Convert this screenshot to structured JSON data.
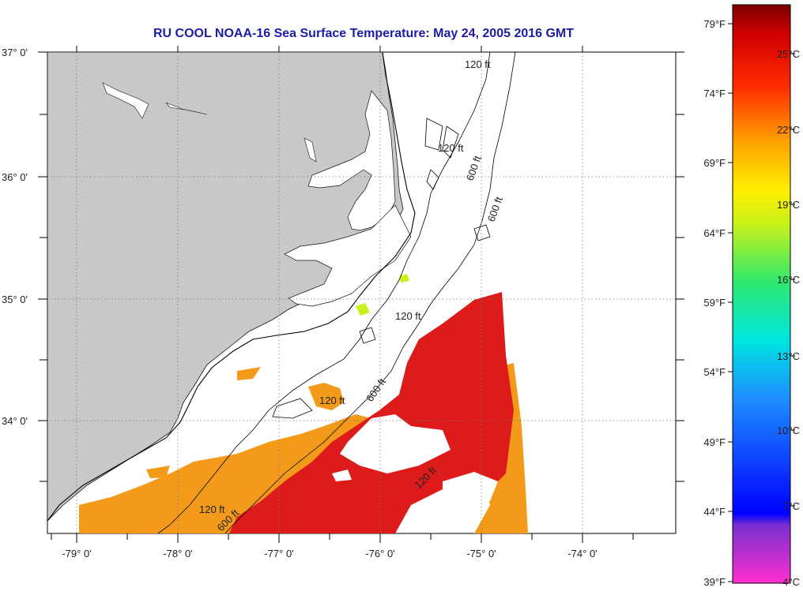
{
  "title": "RU COOL  NOAA-16  Sea Surface Temperature:  May 24, 2005 2016 GMT",
  "map": {
    "lat_labels": [
      "37° 0'",
      "36° 0'",
      "35° 0'",
      "34° 0'"
    ],
    "lon_labels": [
      "-79° 0'",
      "-78° 0'",
      "-77° 0'",
      "-76° 0'",
      "-75° 0'",
      "-74° 0'"
    ],
    "contours": [
      "120 ft",
      "120 ft",
      "120 ft",
      "120 ft",
      "120 ft",
      "600 ft",
      "600 ft",
      "600 ft",
      "120 ft",
      "600 ft"
    ],
    "colors": {
      "land": "#c8c8c8",
      "water_cloud": "#ffffff",
      "sst_hot": "#dd1b1b",
      "sst_warm": "#f39a1b"
    }
  },
  "colorbar": {
    "f_labels": [
      "79°F",
      "74°F",
      "69°F",
      "64°F",
      "59°F",
      "54°F",
      "49°F",
      "44°F",
      "39°F"
    ],
    "c_labels": [
      "25°C",
      "22°C",
      "19°C",
      "16°C",
      "13°C",
      "10°C",
      "7°C",
      "4°C"
    ]
  }
}
